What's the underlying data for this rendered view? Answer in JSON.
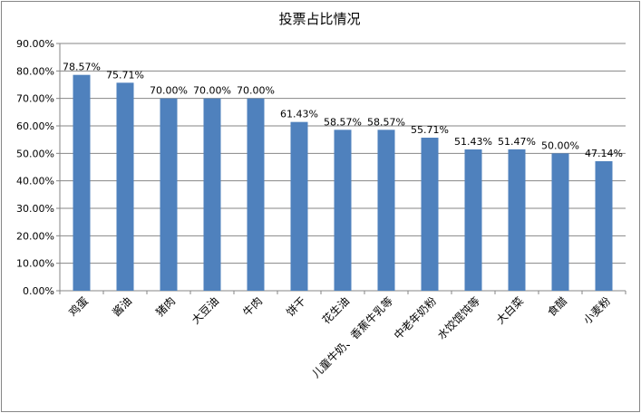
{
  "chart_data": {
    "type": "bar",
    "title": "投票占比情况",
    "xlabel": "",
    "ylabel": "",
    "ylim": [
      0,
      90
    ],
    "ytick_step": 10,
    "ytick_labels": [
      "0.00%",
      "10.00%",
      "20.00%",
      "30.00%",
      "40.00%",
      "50.00%",
      "60.00%",
      "70.00%",
      "80.00%",
      "90.00%"
    ],
    "categories": [
      "鸡蛋",
      "酱油",
      "猪肉",
      "大豆油",
      "牛肉",
      "饼干",
      "花生油",
      "儿童牛奶、香蕉牛乳等",
      "中老年奶粉",
      "水饺馄饨等",
      "大白菜",
      "食醋",
      "小麦粉"
    ],
    "values": [
      78.57,
      75.71,
      70.0,
      70.0,
      70.0,
      61.43,
      58.57,
      58.57,
      55.71,
      51.43,
      51.47,
      50.0,
      47.14
    ],
    "value_labels": [
      "78.57%",
      "75.71%",
      "70.00%",
      "70.00%",
      "70.00%",
      "61.43%",
      "58.57%",
      "58.57%",
      "55.71%",
      "51.43%",
      "51.47%",
      "50.00%",
      "47.14%"
    ],
    "grid": true,
    "legend": "none",
    "bar_color": "#4F81BD",
    "grid_color": "#868686"
  }
}
